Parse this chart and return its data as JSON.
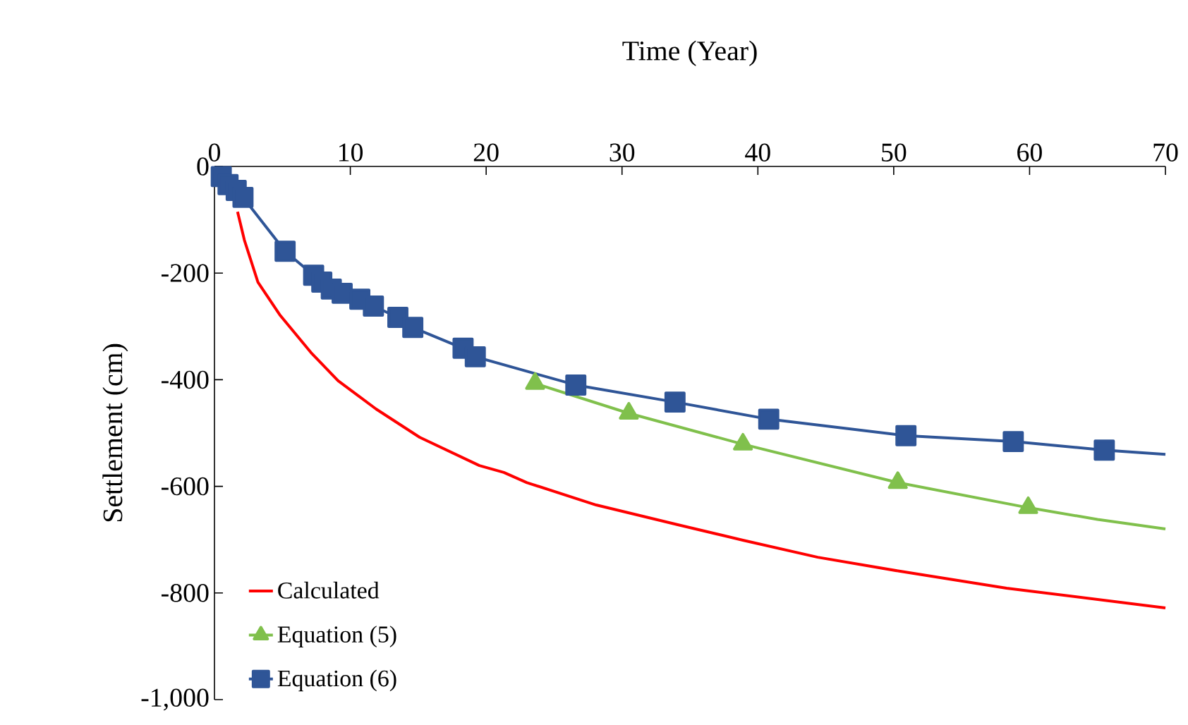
{
  "chart_data": {
    "type": "line",
    "xlabel": "Time (Year)",
    "ylabel": "Settlement (cm)",
    "xlim": [
      0,
      70
    ],
    "xticks": [
      0,
      10,
      20,
      30,
      40,
      50,
      60,
      70
    ],
    "ylim": [
      -1000,
      0
    ],
    "yticks": [
      {
        "value": -1000,
        "label": "-1,000"
      },
      -800,
      -600,
      -400,
      -200,
      0
    ],
    "legend": "bottom left",
    "grid": false,
    "series": [
      {
        "name": "Calculated",
        "color": "#ff0000",
        "marker": "none",
        "x": [
          1.7,
          2.2,
          3.2,
          4.8,
          7.1,
          9.1,
          11.9,
          15.1,
          19.5,
          21.3,
          23,
          28.1,
          34.1,
          38.9,
          44.4,
          50.4,
          58.3,
          70
        ],
        "values": [
          -85,
          -138,
          -217,
          -278,
          -349,
          -402,
          -455,
          -508,
          -561,
          -574,
          -593,
          -635,
          -672,
          -701,
          -733,
          -759,
          -791,
          -828
        ]
      },
      {
        "name": "Equation (5)",
        "color": "#80c04c",
        "marker": "triangle",
        "x": [
          23.6,
          30.5,
          38.9,
          50.3,
          59.9
        ],
        "values": [
          -407,
          -463,
          -521,
          -593,
          -640
        ]
      },
      {
        "color": "#80c04c",
        "marker": "none",
        "x": [
          59.9,
          65,
          70
        ],
        "values": [
          -640,
          -662,
          -680
        ]
      },
      {
        "name": "Equation (6)",
        "color": "#2f5597",
        "marker": "square",
        "x": [
          0.5,
          1.0,
          1.6,
          2.1,
          5.2,
          7.3,
          7.9,
          8.6,
          9.4,
          10.7,
          11.7,
          13.5,
          14.6,
          18.3,
          19.2,
          26.6,
          33.9,
          40.8,
          50.9,
          58.8,
          65.5
        ],
        "values": [
          -19,
          -34,
          -45,
          -58,
          -159,
          -204,
          -217,
          -230,
          -238,
          -249,
          -262,
          -283,
          -302,
          -341,
          -357,
          -410,
          -442,
          -474,
          -505,
          -516,
          -532
        ]
      },
      {
        "color": "#2f5597",
        "marker": "none",
        "x": [
          65.5,
          70
        ],
        "values": [
          -532,
          -540
        ]
      }
    ]
  }
}
